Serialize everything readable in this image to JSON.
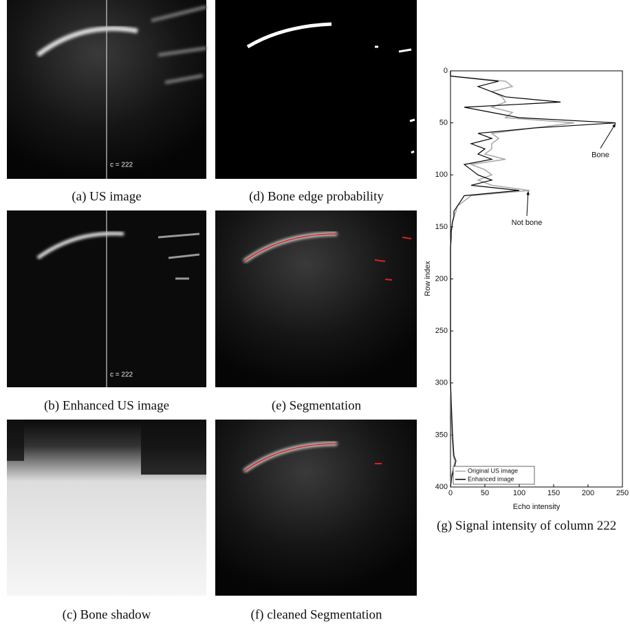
{
  "panels": [
    {
      "caption": "(a) US image",
      "annotation": "c = 222"
    },
    {
      "caption": "(b) Enhanced US image",
      "annotation": "c = 222"
    },
    {
      "caption": "(c) Bone shadow"
    },
    {
      "caption": "(d) Bone edge probability"
    },
    {
      "caption": "(e) Segmentation"
    },
    {
      "caption": "(f) cleaned Segmentation"
    }
  ],
  "chart_data": {
    "type": "line",
    "caption": "(g) Signal intensity of column 222",
    "x_label": "Echo intensity",
    "y_label": "Row index",
    "xlim": [
      0,
      250
    ],
    "ylim": [
      0,
      400
    ],
    "y_inverted": true,
    "xticks": [
      0,
      50,
      100,
      150,
      200,
      250
    ],
    "yticks": [
      0,
      50,
      100,
      150,
      200,
      250,
      300,
      350,
      400
    ],
    "legend": "lower left",
    "y": [
      0,
      5,
      10,
      15,
      20,
      25,
      30,
      35,
      40,
      45,
      50,
      55,
      60,
      65,
      70,
      75,
      80,
      85,
      90,
      95,
      100,
      105,
      110,
      115,
      120,
      125,
      130,
      135,
      140,
      145,
      150,
      155,
      160,
      170,
      180,
      200,
      250,
      300,
      350,
      370,
      375,
      380,
      385,
      390,
      400
    ],
    "series": [
      {
        "name": "Original US image",
        "color": "#aaaaaa",
        "values": [
          0,
          0,
          80,
          90,
          60,
          75,
          80,
          60,
          90,
          80,
          180,
          120,
          60,
          70,
          60,
          60,
          50,
          80,
          30,
          50,
          60,
          40,
          60,
          115,
          30,
          20,
          10,
          8,
          5,
          3,
          2,
          1,
          1,
          0,
          0,
          0,
          0,
          0,
          2,
          4,
          6,
          5,
          3,
          1,
          0
        ]
      },
      {
        "name": "Enhanced image",
        "color": "#000000",
        "values": [
          0,
          0,
          70,
          40,
          60,
          80,
          160,
          20,
          60,
          100,
          240,
          120,
          40,
          60,
          30,
          50,
          40,
          60,
          20,
          30,
          40,
          60,
          30,
          100,
          20,
          15,
          10,
          5,
          5,
          3,
          2,
          1,
          1,
          0,
          0,
          0,
          0,
          0,
          3,
          5,
          8,
          6,
          4,
          2,
          0
        ]
      }
    ],
    "annotations": [
      {
        "text": "Bone",
        "row": 48,
        "value": 240
      },
      {
        "text": "Not bone",
        "row": 113,
        "value": 113
      }
    ]
  }
}
